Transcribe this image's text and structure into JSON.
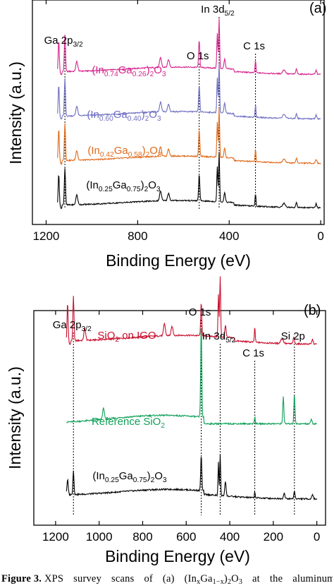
{
  "chart_data": [
    {
      "type": "line",
      "panel_label": "(a)",
      "xlabel": "Binding Energy (eV)",
      "ylabel": "Intensity (a.u.)",
      "x_reversed": true,
      "xlim": [
        1260,
        -15
      ],
      "xticks": [
        "1200",
        "800",
        "400",
        "0"
      ],
      "xtick_values": [
        1200,
        800,
        400,
        0
      ],
      "peak_lines": [
        {
          "label_main": "Ga 2p",
          "label_sub": "3/2",
          "label_tail": "",
          "x": 1118
        },
        {
          "label_main": "In 3d",
          "label_sub": "5/2",
          "label_tail": "",
          "x": 444
        },
        {
          "label_main": "O 1s",
          "label_sub": "",
          "label_tail": "",
          "x": 531
        },
        {
          "label_main": "C 1s",
          "label_sub": "",
          "label_tail": "",
          "x": 285
        }
      ],
      "series": [
        {
          "name_parts": [
            "(In",
            "0.74",
            "Ga",
            "0.26",
            ")",
            "2",
            "O",
            "3"
          ],
          "color": "#d6258e",
          "offset": 3
        },
        {
          "name_parts": [
            "(In",
            "0.60",
            "Ga",
            "0.40",
            ")",
            "2",
            "O",
            "3"
          ],
          "color": "#6e6ec2",
          "offset": 2
        },
        {
          "name_parts": [
            "(In",
            "0.42",
            "Ga",
            "0.58",
            ")",
            "2",
            "O",
            "3"
          ],
          "color": "#e06a1a",
          "offset": 1
        },
        {
          "name_parts": [
            "(In",
            "0.25",
            "Ga",
            "0.75",
            ")",
            "2",
            "O",
            "3"
          ],
          "color": "#000000",
          "offset": 0
        }
      ]
    },
    {
      "type": "line",
      "panel_label": "(b)",
      "xlabel": "Binding Energy (eV)",
      "ylabel": "Intensity (a.u.)",
      "x_reversed": true,
      "xlim": [
        1300,
        -40
      ],
      "xticks": [
        "1200",
        "1000",
        "800",
        "600",
        "400",
        "200",
        "0"
      ],
      "xtick_values": [
        1200,
        1000,
        800,
        600,
        400,
        200,
        0
      ],
      "peak_lines": [
        {
          "label_main": "Ga 2p",
          "label_sub": "3/2",
          "label_tail": "",
          "x": 1118
        },
        {
          "label_main": "O 1s",
          "label_sub": "",
          "label_tail": "",
          "x": 531
        },
        {
          "label_main": "In 3d",
          "label_sub": "5/2",
          "label_tail": "",
          "x": 444
        },
        {
          "label_main": "C 1s",
          "label_sub": "",
          "label_tail": "",
          "x": 285
        },
        {
          "label_main": "Si 2p",
          "label_sub": "",
          "label_tail": "",
          "x": 103
        }
      ],
      "series": [
        {
          "name_parts": [
            "SiO",
            "2",
            " on IGO"
          ],
          "color": "#c8102e",
          "offset": 2
        },
        {
          "name_parts": [
            "Reference SiO",
            "2"
          ],
          "color": "#12a05a",
          "offset": 1
        },
        {
          "name_parts": [
            "(In",
            "0.25",
            "Ga",
            "0.75",
            ")",
            "2",
            "O",
            "3"
          ],
          "color": "#000000",
          "offset": 0
        }
      ]
    }
  ],
  "caption": {
    "bold": "Figure 3.",
    "text_parts": [
      "XPS",
      "survey",
      "scans",
      "of",
      "(a)",
      "(In",
      "x",
      "Ga",
      "1−x",
      ")",
      "2",
      "O",
      "3",
      "at",
      "the",
      "aluminum"
    ]
  }
}
